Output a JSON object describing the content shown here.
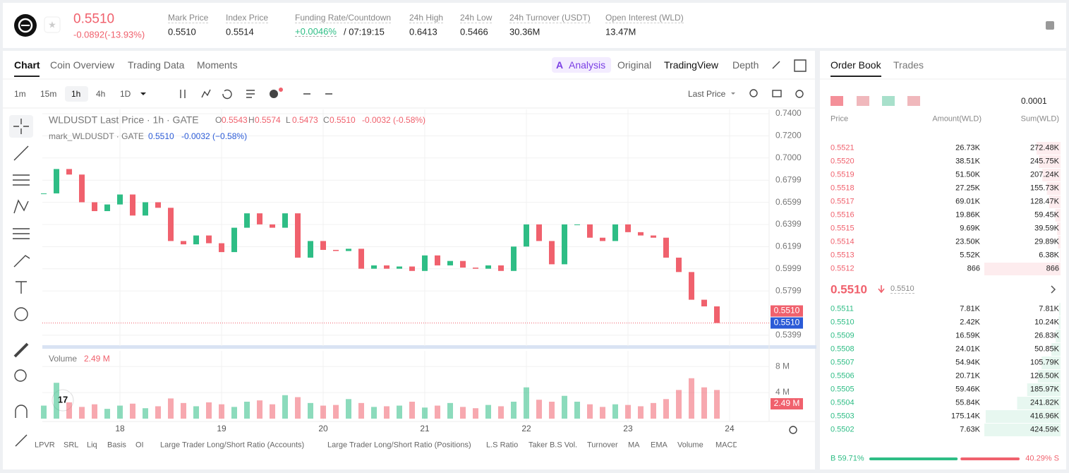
{
  "header": {
    "price": "0.5510",
    "change": "-0.0892(-13.93%)",
    "stats": [
      {
        "label": "Mark Price",
        "value": "0.5510"
      },
      {
        "label": "Index Price",
        "value": "0.5514"
      },
      {
        "label": "Funding Rate/Countdown",
        "value": "+0.0046%",
        "extra": "/ 07:19:15"
      },
      {
        "label": "24h High",
        "value": "0.6413"
      },
      {
        "label": "24h Low",
        "value": "0.5466"
      },
      {
        "label": "24h Turnover (USDT)",
        "value": "30.36M"
      },
      {
        "label": "Open Interest (WLD)",
        "value": "13.47M"
      }
    ]
  },
  "tabs": {
    "left": [
      "Chart",
      "Coin Overview",
      "Trading Data",
      "Moments"
    ],
    "right": [
      "Analysis",
      "Original",
      "TradingView",
      "Depth"
    ]
  },
  "toolbar": {
    "intervals": [
      "1m",
      "15m",
      "1h",
      "4h",
      "1D"
    ],
    "price_type": "Last Price"
  },
  "indicators": [
    "LPVR",
    "SRL",
    "Liq",
    "Basis",
    "OI",
    "Large Trader Long/Short Ratio (Accounts)",
    "Large Trader Long/Short Ratio (Positions)",
    "L.S Ratio",
    "Taker B.S Vol.",
    "Turnover",
    "MA",
    "EMA",
    "Volume",
    "MACD"
  ],
  "chart_data": {
    "type": "candlestick",
    "title": "WLDUSDT Last Price · 1h · GATE",
    "ohlc": [
      {
        "label": "O",
        "value": "0.5543"
      },
      {
        "label": "H",
        "value": "0.5574"
      },
      {
        "label": "L",
        "value": "0.5473"
      },
      {
        "label": "C",
        "value": "0.5510"
      }
    ],
    "change": "-0.0032 (-0.58%)",
    "mark_title": "mark_WLDUSDT · GATE",
    "mark_value": "0.5510",
    "mark_change": "-0.0032 (−0.58%)",
    "x": [
      17.25,
      17.375,
      17.5,
      17.625,
      17.75,
      17.875,
      18,
      18.125,
      18.25,
      18.375,
      18.5,
      18.625,
      18.75,
      18.875,
      19,
      19.125,
      19.25,
      19.375,
      19.5,
      19.625,
      19.75,
      19.875,
      20,
      20.125,
      20.25,
      20.375,
      20.5,
      20.625,
      20.75,
      20.875,
      21,
      21.125,
      21.25,
      21.375,
      21.5,
      21.625,
      21.75,
      21.875,
      22,
      22.125,
      22.25,
      22.375,
      22.5,
      22.625,
      22.75,
      22.875,
      23,
      23.125,
      23.25,
      23.375,
      23.5,
      23.625,
      23.75,
      23.875
    ],
    "closes": [
      0.668,
      0.69,
      0.685,
      0.66,
      0.652,
      0.658,
      0.667,
      0.648,
      0.66,
      0.655,
      0.625,
      0.622,
      0.63,
      0.623,
      0.615,
      0.637,
      0.65,
      0.64,
      0.637,
      0.65,
      0.61,
      0.625,
      0.617,
      0.616,
      0.618,
      0.6,
      0.603,
      0.6,
      0.602,
      0.598,
      0.612,
      0.603,
      0.607,
      0.601,
      0.6,
      0.603,
      0.598,
      0.62,
      0.64,
      0.625,
      0.604,
      0.64,
      0.64,
      0.628,
      0.625,
      0.64,
      0.633,
      0.63,
      0.628,
      0.61,
      0.597,
      0.572,
      0.566,
      0.551
    ],
    "volumes": [
      2.0,
      5.5,
      2.5,
      1.8,
      2.2,
      1.5,
      2.0,
      2.3,
      1.6,
      1.9,
      3.1,
      2.4,
      1.9,
      2.5,
      2.2,
      1.8,
      2.6,
      2.8,
      2.2,
      3.6,
      3.3,
      2.4,
      2.0,
      2.1,
      3.0,
      2.4,
      1.8,
      1.9,
      2.0,
      2.6,
      1.7,
      2.0,
      2.4,
      1.8,
      1.6,
      2.1,
      1.9,
      2.6,
      4.8,
      2.9,
      2.6,
      3.5,
      2.6,
      2.2,
      1.8,
      2.2,
      2.1,
      1.9,
      2.4,
      3.0,
      4.4,
      6.2,
      4.8,
      4.4
    ],
    "xlim": [
      17.236,
      24.389
    ],
    "xticks": [
      18,
      19,
      20,
      21,
      22,
      23,
      24
    ],
    "ylim": [
      0.5303,
      0.7438
    ],
    "yticks": [
      {
        "value": 0.74,
        "label": "0.7400"
      },
      {
        "value": 0.72,
        "label": "0.7200"
      },
      {
        "value": 0.7,
        "label": "0.7000"
      },
      {
        "value": 0.6799,
        "label": "0.6799"
      },
      {
        "value": 0.6599,
        "label": "0.6599"
      },
      {
        "value": 0.6399,
        "label": "0.6399"
      },
      {
        "value": 0.6199,
        "label": "0.6199"
      },
      {
        "value": 0.5999,
        "label": "0.5999"
      },
      {
        "value": 0.5799,
        "label": "0.5799"
      },
      {
        "value": 0.5399,
        "label": "0.5399"
      }
    ],
    "last_price": {
      "value": 0.551,
      "label": "0.5510"
    },
    "mark_price": {
      "value": 0.551,
      "label": "0.5510"
    },
    "volume_title": "Volume",
    "volume_label": "2.49 M",
    "vol_ylim": [
      0,
      10.4
    ],
    "vol_yticks": [
      {
        "value": 8,
        "label": "8 M"
      },
      {
        "value": 4,
        "label": "4 M"
      }
    ],
    "up_color": "#2ebd85",
    "down_color": "#f0616d",
    "grid": true
  },
  "order_book": {
    "tabs": [
      "Order Book",
      "Trades"
    ],
    "precision": "0.0001",
    "columns": [
      "Price",
      "Amount(WLD)",
      "Sum(WLD)"
    ],
    "asks": [
      [
        "0.5521",
        "26.73K",
        "272.48K"
      ],
      [
        "0.5520",
        "38.51K",
        "245.75K"
      ],
      [
        "0.5519",
        "51.50K",
        "207.24K"
      ],
      [
        "0.5518",
        "27.25K",
        "155.73K"
      ],
      [
        "0.5517",
        "69.01K",
        "128.47K"
      ],
      [
        "0.5516",
        "19.86K",
        "59.45K"
      ],
      [
        "0.5515",
        "9.69K",
        "39.59K"
      ],
      [
        "0.5514",
        "23.50K",
        "29.89K"
      ],
      [
        "0.5513",
        "5.52K",
        "6.38K"
      ],
      [
        "0.5512",
        "866",
        "866"
      ]
    ],
    "mid_price": "0.5510",
    "mid_mark": "0.5510",
    "bids": [
      [
        "0.5511",
        "7.81K",
        "7.81K"
      ],
      [
        "0.5510",
        "2.42K",
        "10.24K"
      ],
      [
        "0.5509",
        "16.59K",
        "26.83K"
      ],
      [
        "0.5508",
        "24.01K",
        "50.85K"
      ],
      [
        "0.5507",
        "54.94K",
        "105.79K"
      ],
      [
        "0.5506",
        "20.71K",
        "126.50K"
      ],
      [
        "0.5505",
        "59.46K",
        "185.97K"
      ],
      [
        "0.5504",
        "55.84K",
        "241.82K"
      ],
      [
        "0.5503",
        "175.14K",
        "416.96K"
      ],
      [
        "0.5502",
        "7.63K",
        "424.59K"
      ]
    ],
    "buy_ratio": {
      "value": 59.71,
      "label": "B 59.71%"
    },
    "sell_ratio": {
      "value": 40.29,
      "label": "40.29% S"
    }
  }
}
